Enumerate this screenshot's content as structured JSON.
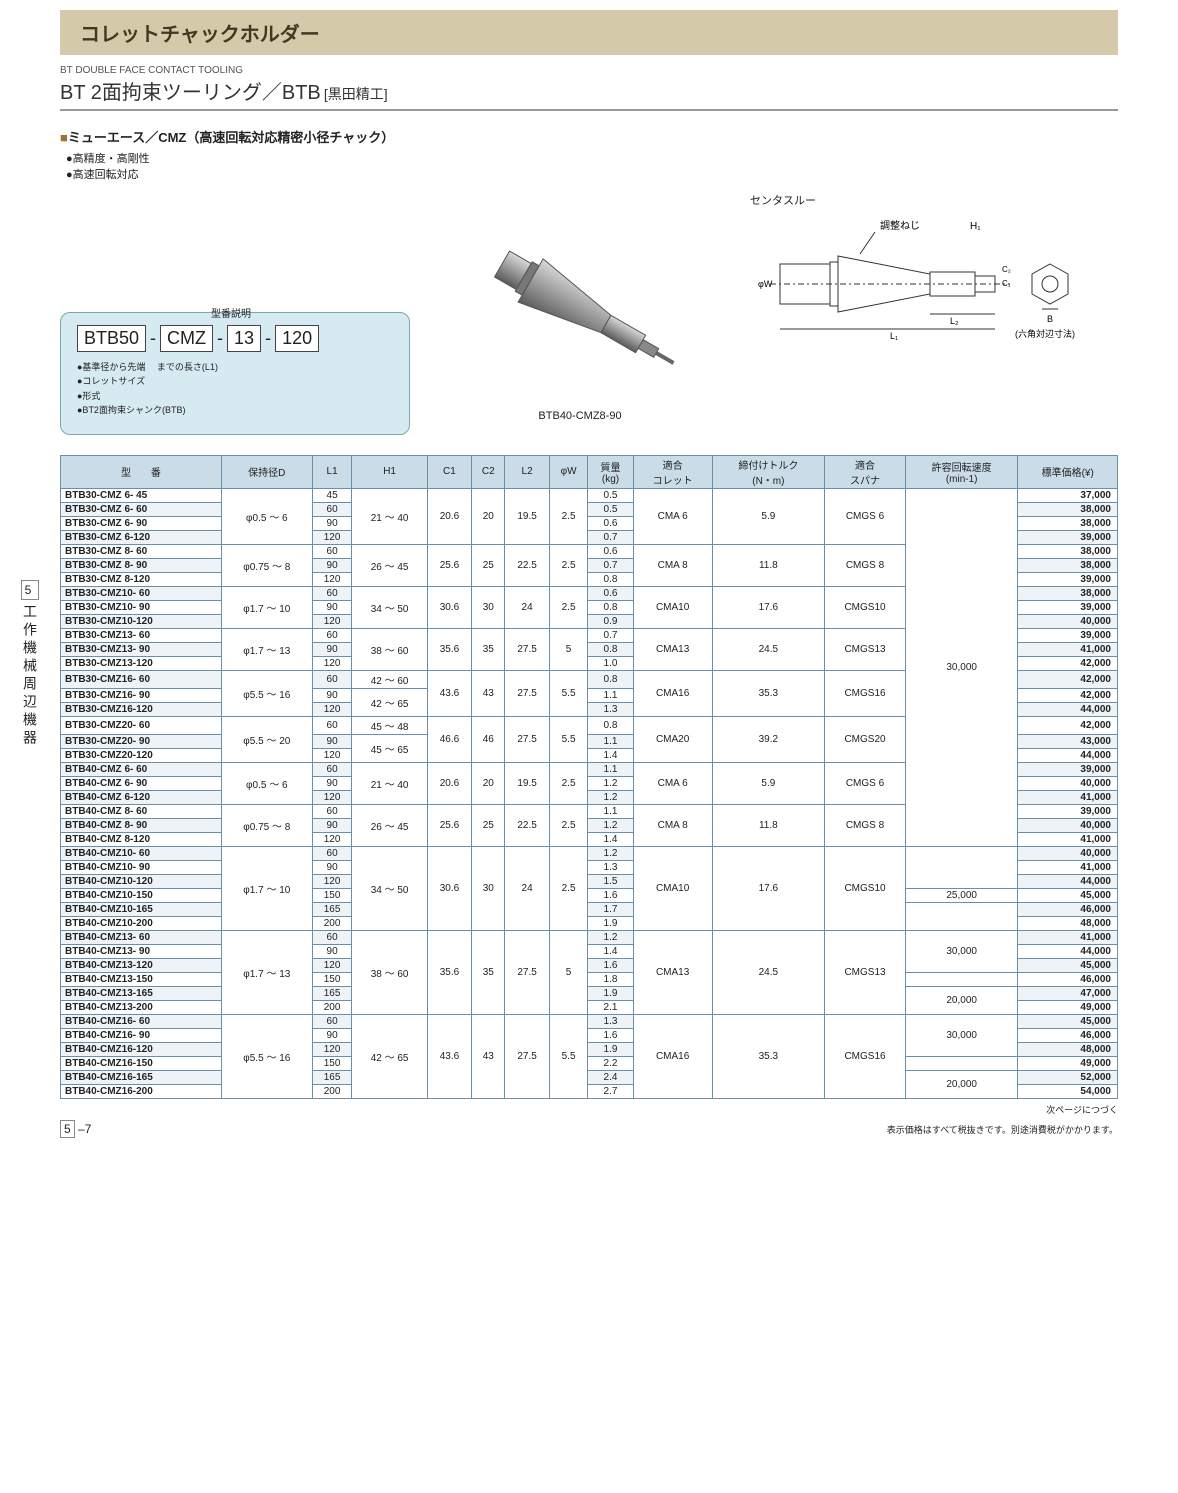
{
  "header": {
    "title": "コレットチャックホルダー",
    "subtitle_small": "BT DOUBLE FACE CONTACT TOOLING",
    "subtitle_main": "BT 2面拘束ツーリング／BTB",
    "subtitle_bracket": "[黒田精工]"
  },
  "section": {
    "name": "ミューエース／CMZ（高速回転対応精密小径チャック）",
    "bullets": [
      "高精度・高剛性",
      "高速回転対応"
    ]
  },
  "model_explain": {
    "title": "型番説明",
    "parts": [
      "BTB50",
      "CMZ",
      "13",
      "120"
    ],
    "notes": [
      "●基準径から先端\n　までの長さ(L1)",
      "●コレットサイズ",
      "●形式",
      "●BT2面拘束シャンク(BTB)"
    ]
  },
  "product_label": "BTB40-CMZ8-90",
  "diagram": {
    "title": "センタスルー",
    "adjust_label": "調整ねじ",
    "dims": [
      "H1",
      "C2",
      "C1",
      "φW",
      "L2",
      "L1",
      "B"
    ],
    "hex_note": "(六角対辺寸法)"
  },
  "table": {
    "headers": [
      "型　　番",
      "保持径D",
      "L1",
      "H1",
      "C1",
      "C2",
      "L2",
      "φW",
      "質量\n(kg)",
      "適合\nコレット",
      "締付けトルク\n(N・m)",
      "適合\nスパナ",
      "許容回転速度\n(min-1)",
      "標準価格(¥)"
    ],
    "groups": [
      {
        "d": "φ0.5 ～ 6",
        "h1": "21 ～ 40",
        "c1": "20.6",
        "c2": "20",
        "l2": "19.5",
        "w": "2.5",
        "collet": "CMA  6",
        "torque": "5.9",
        "spanner": "CMGS  6",
        "rpm": "30,000",
        "rows": [
          {
            "m": "BTB30-CMZ  6-  45",
            "l1": "45",
            "kg": "0.5",
            "price": "37,000"
          },
          {
            "m": "BTB30-CMZ  6-  60",
            "l1": "60",
            "kg": "0.5",
            "price": "38,000",
            "shade": true
          },
          {
            "m": "BTB30-CMZ  6-  90",
            "l1": "90",
            "kg": "0.6",
            "price": "38,000"
          },
          {
            "m": "BTB30-CMZ  6-120",
            "l1": "120",
            "kg": "0.7",
            "price": "39,000",
            "shade": true
          }
        ]
      },
      {
        "d": "φ0.75 ～ 8",
        "h1": "26 ～ 45",
        "c1": "25.6",
        "c2": "25",
        "l2": "22.5",
        "w": "2.5",
        "collet": "CMA  8",
        "torque": "11.8",
        "spanner": "CMGS  8",
        "rpm": "",
        "rows": [
          {
            "m": "BTB30-CMZ  8-  60",
            "l1": "60",
            "kg": "0.6",
            "price": "38,000"
          },
          {
            "m": "BTB30-CMZ  8-  90",
            "l1": "90",
            "kg": "0.7",
            "price": "38,000",
            "shade": true
          },
          {
            "m": "BTB30-CMZ  8-120",
            "l1": "120",
            "kg": "0.8",
            "price": "39,000"
          }
        ]
      },
      {
        "d": "φ1.7 ～ 10",
        "h1": "34 ～ 50",
        "c1": "30.6",
        "c2": "30",
        "l2": "24",
        "w": "2.5",
        "collet": "CMA10",
        "torque": "17.6",
        "spanner": "CMGS10",
        "rpm": "",
        "rows": [
          {
            "m": "BTB30-CMZ10-  60",
            "l1": "60",
            "kg": "0.6",
            "price": "38,000",
            "shade": true
          },
          {
            "m": "BTB30-CMZ10-  90",
            "l1": "90",
            "kg": "0.8",
            "price": "39,000"
          },
          {
            "m": "BTB30-CMZ10-120",
            "l1": "120",
            "kg": "0.9",
            "price": "40,000",
            "shade": true
          }
        ]
      },
      {
        "d": "φ1.7 ～ 13",
        "h1": "38 ～ 60",
        "c1": "35.6",
        "c2": "35",
        "l2": "27.5",
        "w": "5",
        "collet": "CMA13",
        "torque": "24.5",
        "spanner": "CMGS13",
        "rpm": "",
        "rows": [
          {
            "m": "BTB30-CMZ13-  60",
            "l1": "60",
            "kg": "0.7",
            "price": "39,000"
          },
          {
            "m": "BTB30-CMZ13-  90",
            "l1": "90",
            "kg": "0.8",
            "price": "41,000",
            "shade": true
          },
          {
            "m": "BTB30-CMZ13-120",
            "l1": "120",
            "kg": "1.0",
            "price": "42,000"
          }
        ]
      },
      {
        "d": "φ5.5 ～ 16",
        "h1_rows": [
          "42 ～ 60",
          "42 ～ 65"
        ],
        "c1": "43.6",
        "c2": "43",
        "l2": "27.5",
        "w": "5.5",
        "collet": "CMA16",
        "torque": "35.3",
        "spanner": "CMGS16",
        "rpm": "",
        "rows": [
          {
            "m": "BTB30-CMZ16-  60",
            "l1": "60",
            "kg": "0.8",
            "price": "42,000",
            "shade": true
          },
          {
            "m": "BTB30-CMZ16-  90",
            "l1": "90",
            "kg": "1.1",
            "price": "42,000"
          },
          {
            "m": "BTB30-CMZ16-120",
            "l1": "120",
            "kg": "1.3",
            "price": "44,000",
            "shade": true
          }
        ]
      },
      {
        "d": "φ5.5 ～ 20",
        "h1_rows": [
          "45 ～ 48",
          "45 ～ 65"
        ],
        "c1": "46.6",
        "c2": "46",
        "l2": "27.5",
        "w": "5.5",
        "collet": "CMA20",
        "torque": "39.2",
        "spanner": "CMGS20",
        "rpm": "",
        "rows": [
          {
            "m": "BTB30-CMZ20-  60",
            "l1": "60",
            "kg": "0.8",
            "price": "42,000"
          },
          {
            "m": "BTB30-CMZ20-  90",
            "l1": "90",
            "kg": "1.1",
            "price": "43,000",
            "shade": true
          },
          {
            "m": "BTB30-CMZ20-120",
            "l1": "120",
            "kg": "1.4",
            "price": "44,000"
          }
        ]
      },
      {
        "d": "φ0.5 ～ 6",
        "h1": "21 ～ 40",
        "c1": "20.6",
        "c2": "20",
        "l2": "19.5",
        "w": "2.5",
        "collet": "CMA  6",
        "torque": "5.9",
        "spanner": "CMGS  6",
        "rpm": "",
        "rows": [
          {
            "m": "BTB40-CMZ  6-  60",
            "l1": "60",
            "kg": "1.1",
            "price": "39,000",
            "shade": true
          },
          {
            "m": "BTB40-CMZ  6-  90",
            "l1": "90",
            "kg": "1.2",
            "price": "40,000"
          },
          {
            "m": "BTB40-CMZ  6-120",
            "l1": "120",
            "kg": "1.2",
            "price": "41,000",
            "shade": true
          }
        ]
      },
      {
        "d": "φ0.75 ～ 8",
        "h1": "26 ～ 45",
        "c1": "25.6",
        "c2": "25",
        "l2": "22.5",
        "w": "2.5",
        "collet": "CMA  8",
        "torque": "11.8",
        "spanner": "CMGS  8",
        "rpm": "",
        "rows": [
          {
            "m": "BTB40-CMZ  8-  60",
            "l1": "60",
            "kg": "1.1",
            "price": "39,000"
          },
          {
            "m": "BTB40-CMZ  8-  90",
            "l1": "90",
            "kg": "1.2",
            "price": "40,000",
            "shade": true
          },
          {
            "m": "BTB40-CMZ  8-120",
            "l1": "120",
            "kg": "1.4",
            "price": "41,000"
          }
        ]
      },
      {
        "d": "φ1.7 ～ 10",
        "h1": "34 ～ 50",
        "c1": "30.6",
        "c2": "30",
        "l2": "24",
        "w": "2.5",
        "collet": "CMA10",
        "torque": "17.6",
        "spanner": "CMGS10",
        "rpm_split": [
          "",
          "25,000",
          ""
        ],
        "rows": [
          {
            "m": "BTB40-CMZ10-  60",
            "l1": "60",
            "kg": "1.2",
            "price": "40,000",
            "shade": true
          },
          {
            "m": "BTB40-CMZ10-  90",
            "l1": "90",
            "kg": "1.3",
            "price": "41,000"
          },
          {
            "m": "BTB40-CMZ10-120",
            "l1": "120",
            "kg": "1.5",
            "price": "44,000",
            "shade": true
          },
          {
            "m": "BTB40-CMZ10-150",
            "l1": "150",
            "kg": "1.6",
            "price": "45,000"
          },
          {
            "m": "BTB40-CMZ10-165",
            "l1": "165",
            "kg": "1.7",
            "price": "46,000",
            "shade": true
          },
          {
            "m": "BTB40-CMZ10-200",
            "l1": "200",
            "kg": "1.9",
            "price": "48,000"
          }
        ]
      },
      {
        "d": "φ1.7 ～ 13",
        "h1": "38 ～ 60",
        "c1": "35.6",
        "c2": "35",
        "l2": "27.5",
        "w": "5",
        "collet": "CMA13",
        "torque": "24.5",
        "spanner": "CMGS13",
        "rpm_split": [
          "30,000",
          "",
          "20,000"
        ],
        "rows": [
          {
            "m": "BTB40-CMZ13-  60",
            "l1": "60",
            "kg": "1.2",
            "price": "41,000",
            "shade": true
          },
          {
            "m": "BTB40-CMZ13-  90",
            "l1": "90",
            "kg": "1.4",
            "price": "44,000"
          },
          {
            "m": "BTB40-CMZ13-120",
            "l1": "120",
            "kg": "1.6",
            "price": "45,000",
            "shade": true
          },
          {
            "m": "BTB40-CMZ13-150",
            "l1": "150",
            "kg": "1.8",
            "price": "46,000"
          },
          {
            "m": "BTB40-CMZ13-165",
            "l1": "165",
            "kg": "1.9",
            "price": "47,000",
            "shade": true
          },
          {
            "m": "BTB40-CMZ13-200",
            "l1": "200",
            "kg": "2.1",
            "price": "49,000"
          }
        ]
      },
      {
        "d": "φ5.5 ～ 16",
        "h1": "42 ～ 65",
        "c1": "43.6",
        "c2": "43",
        "l2": "27.5",
        "w": "5.5",
        "collet": "CMA16",
        "torque": "35.3",
        "spanner": "CMGS16",
        "rpm_split": [
          "30,000",
          "",
          "20,000"
        ],
        "rows": [
          {
            "m": "BTB40-CMZ16-  60",
            "l1": "60",
            "kg": "1.3",
            "price": "45,000",
            "shade": true
          },
          {
            "m": "BTB40-CMZ16-  90",
            "l1": "90",
            "kg": "1.6",
            "price": "46,000"
          },
          {
            "m": "BTB40-CMZ16-120",
            "l1": "120",
            "kg": "1.9",
            "price": "48,000",
            "shade": true
          },
          {
            "m": "BTB40-CMZ16-150",
            "l1": "150",
            "kg": "2.2",
            "price": "49,000"
          },
          {
            "m": "BTB40-CMZ16-165",
            "l1": "165",
            "kg": "2.4",
            "price": "52,000",
            "shade": true
          },
          {
            "m": "BTB40-CMZ16-200",
            "l1": "200",
            "kg": "2.7",
            "price": "54,000"
          }
        ]
      }
    ]
  },
  "footer": {
    "continue": "次ページにつづく",
    "page": "5 –7",
    "price_note": "表示価格はすべて税抜きです。別途消費税がかかります。"
  },
  "side_tab": {
    "num": "5",
    "text": "工作機械周辺機器"
  },
  "colors": {
    "band": "#d4c9a8",
    "header_bg": "#c9dce8",
    "border": "#6b8fa8",
    "modelbox": "#d6eaf2",
    "shade": "#eef3f7"
  }
}
